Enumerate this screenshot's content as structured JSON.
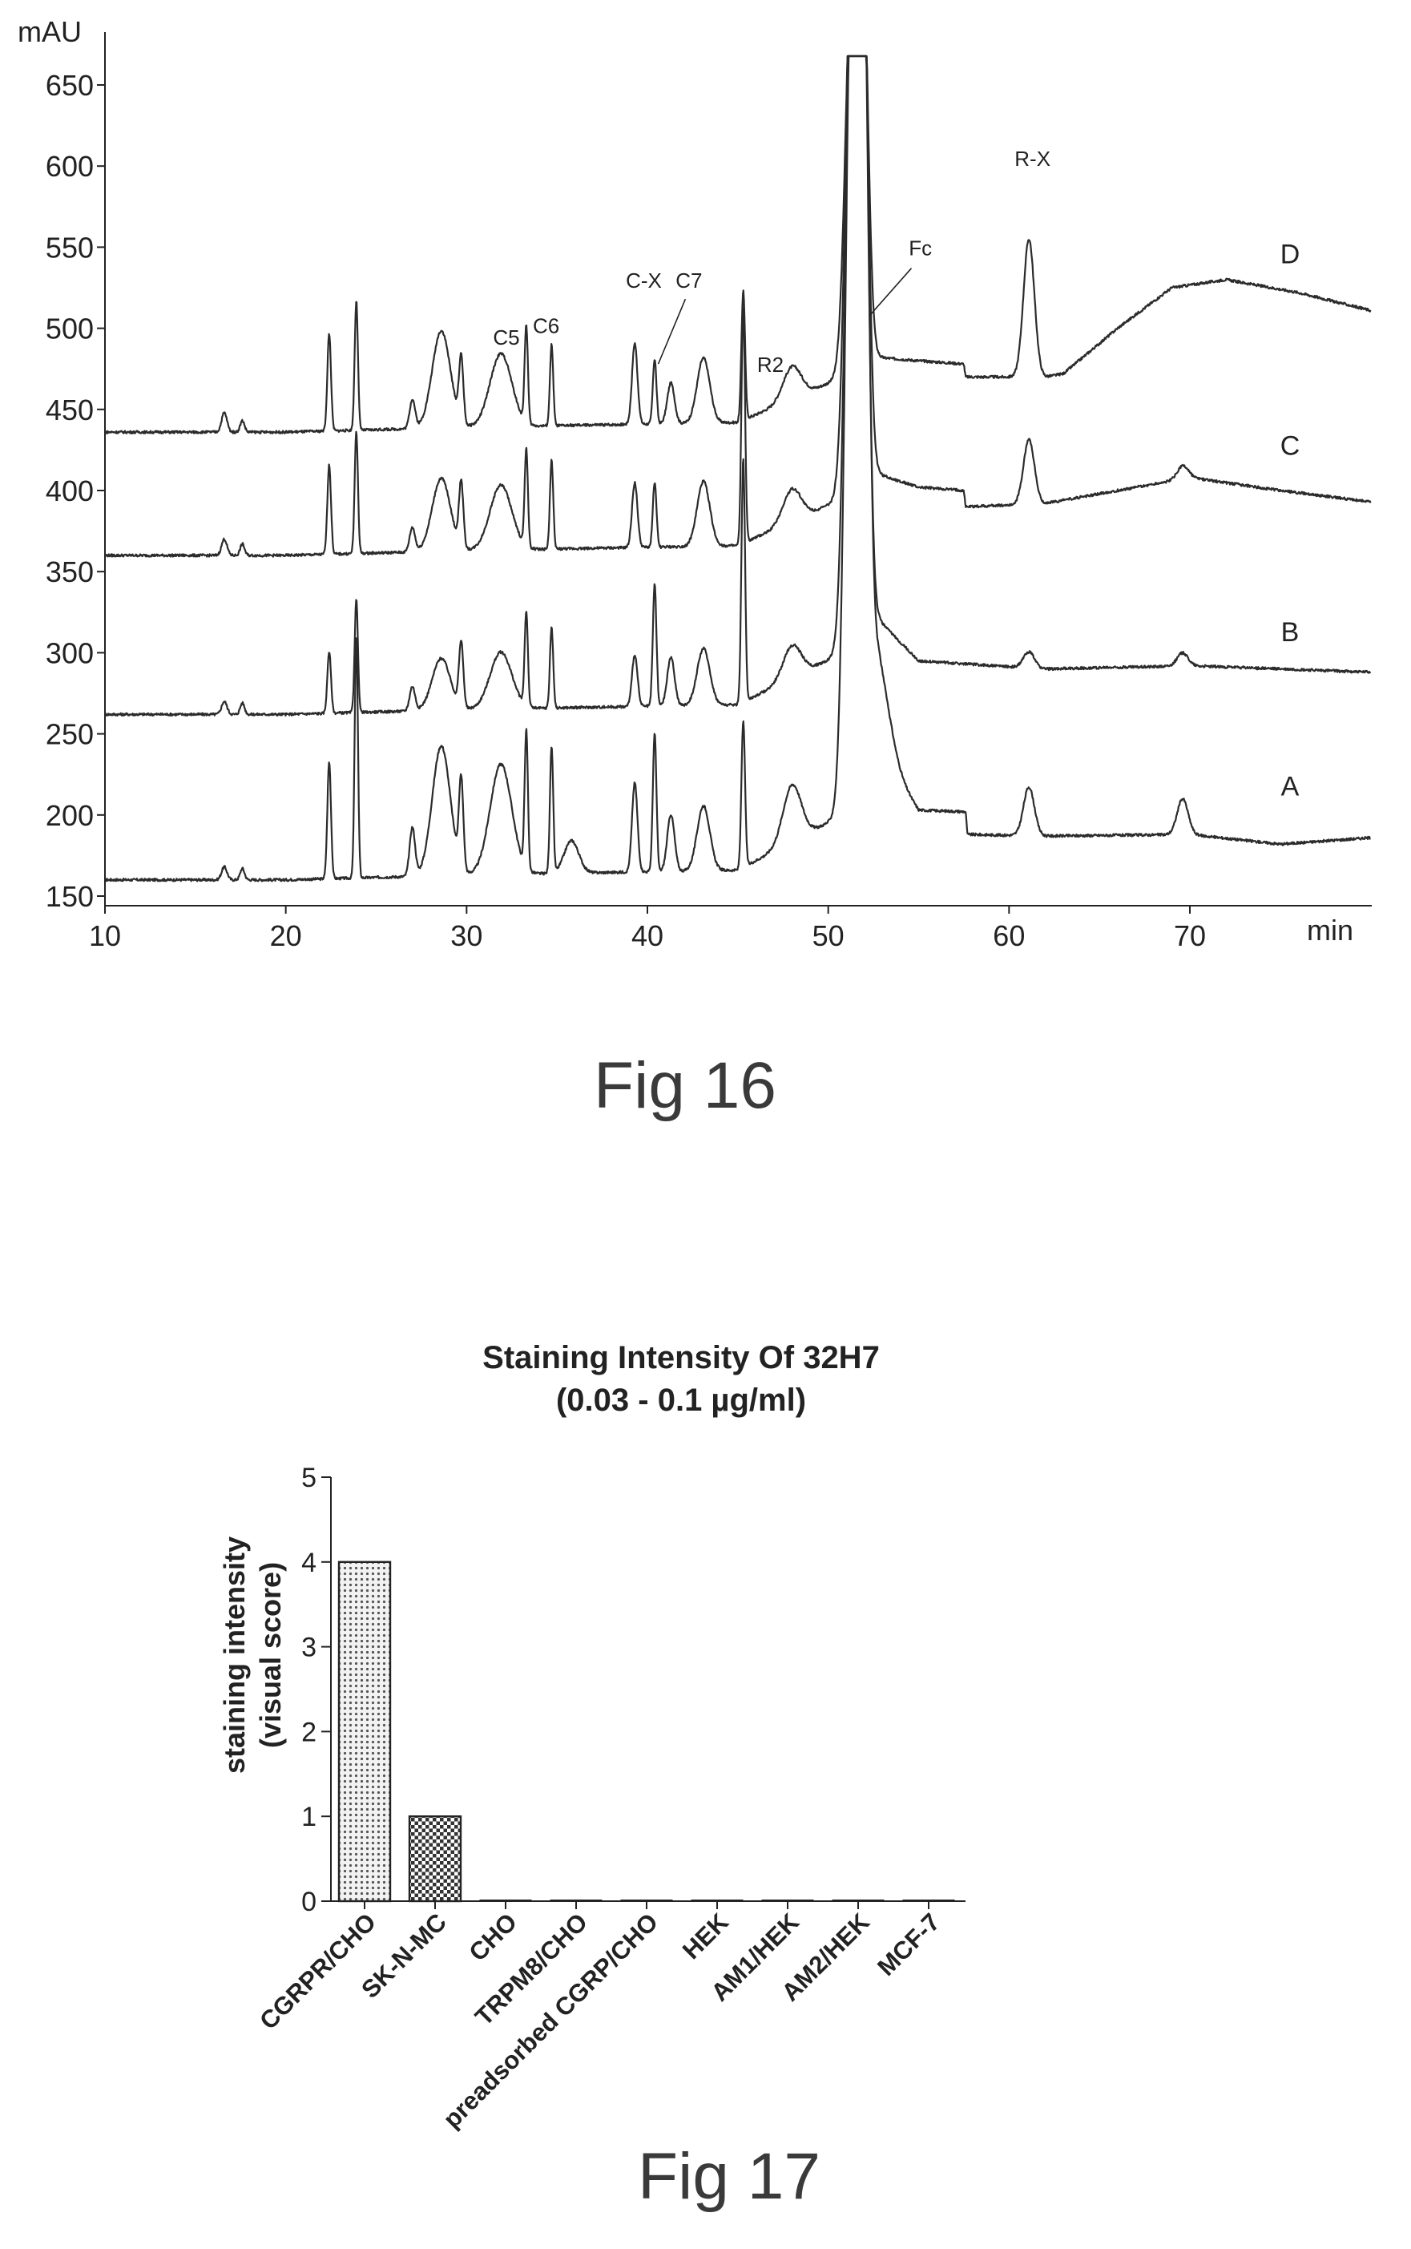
{
  "figures": [
    {
      "id": "fig16",
      "caption": "Fig 16"
    },
    {
      "id": "fig17",
      "caption": "Fig 17"
    }
  ],
  "chart_data": [
    {
      "id": "fig16",
      "type": "line",
      "title": "",
      "xlabel": "min",
      "ylabel": "mAU",
      "xlim": [
        10,
        80
      ],
      "ylim": [
        150,
        680
      ],
      "x_ticks": [
        10,
        20,
        30,
        40,
        50,
        60,
        70
      ],
      "y_ticks": [
        150,
        200,
        250,
        300,
        350,
        400,
        450,
        500,
        550,
        600,
        650
      ],
      "series": [
        {
          "name": "A",
          "baseline": 160,
          "end_value": 188,
          "peaks": [
            [
              16.6,
              8,
              0.15
            ],
            [
              17.6,
              7,
              0.12
            ],
            [
              22.4,
              72,
              0.1
            ],
            [
              23.9,
              148,
              0.09
            ],
            [
              27.0,
              30,
              0.15
            ],
            [
              28.6,
              80,
              0.5
            ],
            [
              29.7,
              55,
              0.12
            ],
            [
              31.9,
              68,
              0.6
            ],
            [
              33.3,
              85,
              0.09
            ],
            [
              34.7,
              78,
              0.09
            ],
            [
              35.8,
              20,
              0.4
            ],
            [
              39.3,
              55,
              0.15
            ],
            [
              40.4,
              85,
              0.1
            ],
            [
              41.3,
              35,
              0.2
            ],
            [
              43.1,
              40,
              0.35
            ],
            [
              45.3,
              90,
              0.1
            ],
            [
              48.0,
              35,
              0.5
            ],
            [
              51.3,
              500,
              0.35
            ],
            [
              51.9,
              500,
              0.3
            ],
            [
              52.6,
              60,
              0.7
            ],
            [
              61.1,
              30,
              0.3
            ],
            [
              69.6,
              22,
              0.3
            ]
          ],
          "segments": [
            [
              50.8,
              200
            ],
            [
              52.8,
              240
            ],
            [
              55,
              203
            ],
            [
              57.6,
              202
            ],
            [
              57.7,
              188
            ],
            [
              62,
              187
            ],
            [
              70,
              188
            ],
            [
              75,
              182
            ],
            [
              80,
              186
            ]
          ]
        },
        {
          "name": "B",
          "baseline": 262,
          "end_value": 288,
          "peaks": [
            [
              16.6,
              8,
              0.15
            ],
            [
              17.6,
              7,
              0.12
            ],
            [
              22.4,
              38,
              0.1
            ],
            [
              23.9,
              70,
              0.09
            ],
            [
              27.0,
              15,
              0.15
            ],
            [
              28.6,
              32,
              0.5
            ],
            [
              29.7,
              40,
              0.12
            ],
            [
              31.9,
              35,
              0.6
            ],
            [
              33.3,
              58,
              0.09
            ],
            [
              34.7,
              50,
              0.09
            ],
            [
              39.3,
              32,
              0.15
            ],
            [
              40.4,
              75,
              0.1
            ],
            [
              41.3,
              30,
              0.2
            ],
            [
              43.1,
              35,
              0.35
            ],
            [
              45.3,
              150,
              0.1
            ],
            [
              48.0,
              20,
              0.5
            ],
            [
              51.3,
              420,
              0.35
            ],
            [
              51.9,
              420,
              0.3
            ],
            [
              61.1,
              10,
              0.3
            ],
            [
              69.6,
              8,
              0.3
            ]
          ],
          "segments": [
            [
              50.8,
              300
            ],
            [
              52.8,
              320
            ],
            [
              55,
              295
            ],
            [
              62,
              290
            ],
            [
              70,
              292
            ],
            [
              80,
              288
            ]
          ]
        },
        {
          "name": "C",
          "baseline": 360,
          "end_value": 393,
          "peaks": [
            [
              16.6,
              10,
              0.15
            ],
            [
              17.6,
              7,
              0.12
            ],
            [
              22.4,
              55,
              0.1
            ],
            [
              23.9,
              75,
              0.09
            ],
            [
              27.0,
              15,
              0.15
            ],
            [
              28.6,
              45,
              0.5
            ],
            [
              29.7,
              40,
              0.12
            ],
            [
              31.9,
              40,
              0.6
            ],
            [
              33.3,
              60,
              0.09
            ],
            [
              34.7,
              55,
              0.09
            ],
            [
              39.3,
              40,
              0.15
            ],
            [
              40.4,
              40,
              0.1
            ],
            [
              43.1,
              40,
              0.35
            ],
            [
              45.3,
              145,
              0.1
            ],
            [
              48.0,
              20,
              0.5
            ],
            [
              51.3,
              330,
              0.35
            ],
            [
              51.9,
              330,
              0.3
            ],
            [
              61.1,
              40,
              0.3
            ],
            [
              69.6,
              8,
              0.3
            ]
          ],
          "segments": [
            [
              50.8,
              395
            ],
            [
              52.8,
              410
            ],
            [
              55,
              402
            ],
            [
              57.5,
              400
            ],
            [
              57.6,
              390
            ],
            [
              62,
              392
            ],
            [
              66,
              400
            ],
            [
              70,
              408
            ],
            [
              75,
              400
            ],
            [
              80,
              393
            ]
          ]
        },
        {
          "name": "D",
          "baseline": 436,
          "end_value": 511,
          "peaks": [
            [
              16.6,
              12,
              0.15
            ],
            [
              17.6,
              7,
              0.12
            ],
            [
              22.4,
              60,
              0.1
            ],
            [
              23.9,
              80,
              0.09
            ],
            [
              27.0,
              18,
              0.15
            ],
            [
              28.6,
              60,
              0.5
            ],
            [
              29.7,
              40,
              0.12
            ],
            [
              31.9,
              45,
              0.6
            ],
            [
              33.3,
              60,
              0.09
            ],
            [
              34.7,
              50,
              0.09
            ],
            [
              39.3,
              50,
              0.15
            ],
            [
              40.4,
              40,
              0.1
            ],
            [
              41.3,
              25,
              0.2
            ],
            [
              43.1,
              40,
              0.35
            ],
            [
              45.3,
              80,
              0.1
            ],
            [
              48.0,
              20,
              0.5
            ],
            [
              51.3,
              240,
              0.35
            ],
            [
              51.9,
              240,
              0.3
            ],
            [
              61.1,
              85,
              0.3
            ]
          ],
          "segments": [
            [
              50.8,
              470
            ],
            [
              52.8,
              482
            ],
            [
              55,
              480
            ],
            [
              57.5,
              478
            ],
            [
              57.6,
              470
            ],
            [
              62,
              470
            ],
            [
              63,
              472
            ],
            [
              66,
              500
            ],
            [
              69,
              525
            ],
            [
              72,
              530
            ],
            [
              76,
              522
            ],
            [
              80,
              511
            ]
          ]
        }
      ],
      "annotations": [
        {
          "text": "C5",
          "x": 32.2,
          "y": 490
        },
        {
          "text": "C6",
          "x": 34.4,
          "y": 497
        },
        {
          "text": "C-X",
          "x": 39.8,
          "y": 525
        },
        {
          "text": "C7",
          "x": 42.3,
          "y": 525
        },
        {
          "text": "R2",
          "x": 46.8,
          "y": 473
        },
        {
          "text": "Fc",
          "x": 55.1,
          "y": 545
        },
        {
          "text": "R-X",
          "x": 61.3,
          "y": 600
        }
      ],
      "trace_labels": [
        {
          "name": "D",
          "y": 540
        },
        {
          "name": "C",
          "y": 422
        },
        {
          "name": "B",
          "y": 307
        },
        {
          "name": "A",
          "y": 212
        }
      ]
    },
    {
      "id": "fig17",
      "type": "bar",
      "title": "Staining Intensity Of 32H7",
      "subtitle": "(0.03 - 0.1 µg/ml)",
      "ylabel_lines": [
        "staining intensity",
        "(visual score)"
      ],
      "ylim": [
        0,
        5
      ],
      "y_ticks": [
        0,
        1,
        2,
        3,
        4,
        5
      ],
      "categories": [
        "CGRPR/CHO",
        "SK-N-MC",
        "CHO",
        "TRPM8/CHO",
        "preadsorbed CGRP/CHO",
        "HEK",
        "AM1/HEK",
        "AM2/HEK",
        "MCF-7"
      ],
      "values": [
        4,
        1,
        0,
        0,
        0,
        0,
        0,
        0,
        0
      ],
      "bar_fills": [
        "dotted-light",
        "dotted-dark",
        "none",
        "none",
        "none",
        "none",
        "none",
        "none",
        "none"
      ]
    }
  ]
}
